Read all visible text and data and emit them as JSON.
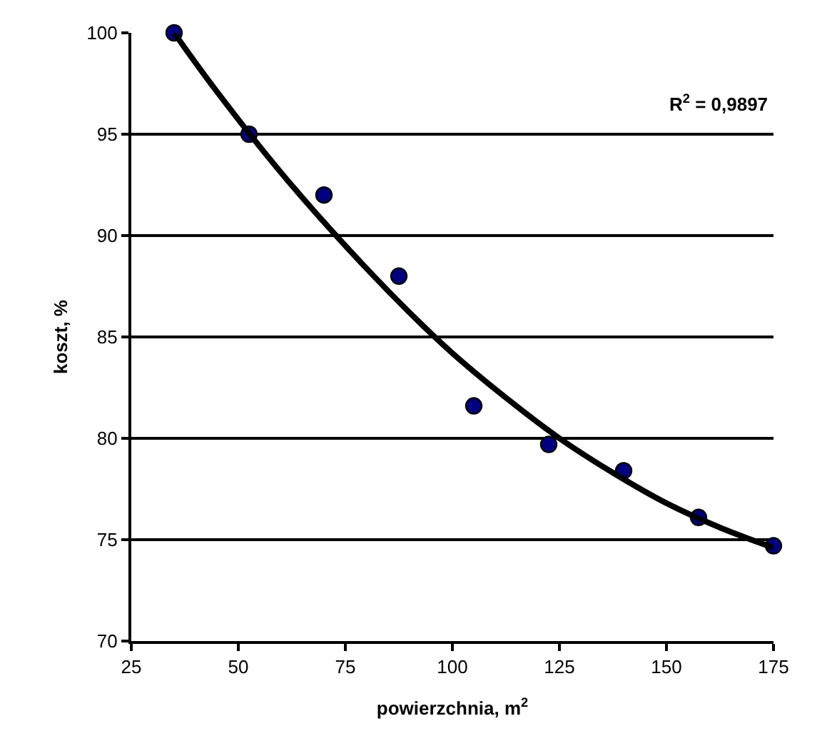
{
  "chart_data": {
    "type": "scatter",
    "xlabel": "powierzchnia, m$^{2}$",
    "ylabel": "koszt, %",
    "annotations": [
      "R$^{2}$ = 0,9897"
    ],
    "series": [
      {
        "color": "#000080",
        "marker": "circle",
        "x": [
          35,
          52.5,
          70,
          87.5,
          105,
          122.5,
          140,
          157.5,
          175
        ],
        "values": [
          100,
          95,
          92,
          88,
          81.6,
          79.7,
          78.4,
          76.1,
          74.7
        ]
      },
      {
        "type": "line",
        "color": "#000000",
        "marker": "none",
        "line_style": "solid",
        "x": [
          35,
          45,
          60,
          75,
          90,
          100,
          112.5,
          125,
          137.5,
          150,
          162.5,
          175
        ],
        "values": [
          100,
          97.1,
          93.1,
          89.5,
          86.2,
          84.2,
          82,
          80,
          78.3,
          76.8,
          75.6,
          74.6
        ]
      }
    ],
    "xlim": [
      25,
      175
    ],
    "xticks": [
      25,
      50,
      75,
      100,
      125,
      150,
      175
    ],
    "ylim": [
      70,
      100
    ],
    "yticks": [
      70,
      75,
      80,
      85,
      90,
      95,
      100
    ],
    "grid": "y",
    "legend": false
  }
}
